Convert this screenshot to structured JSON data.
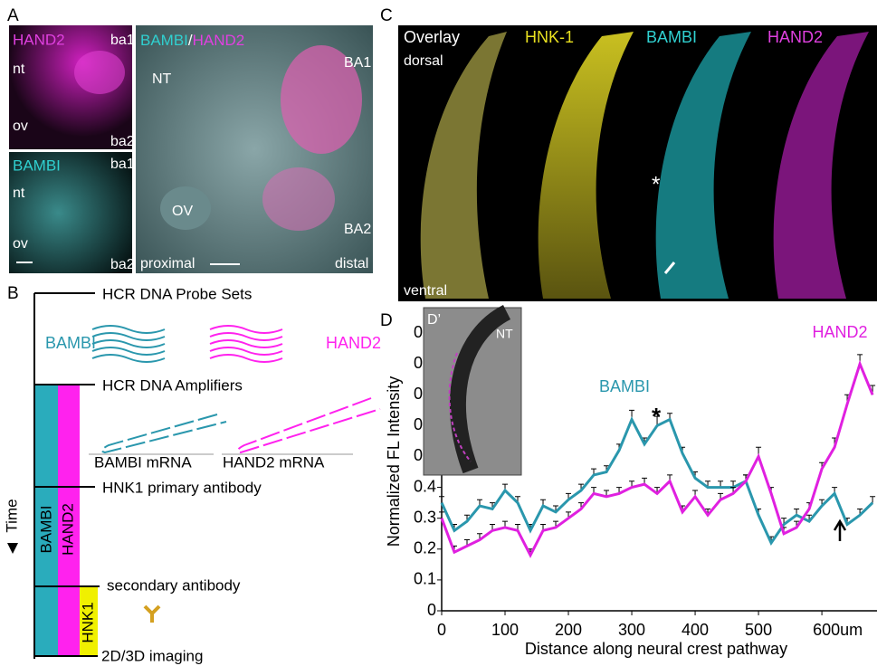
{
  "panel_a": {
    "letter": "A",
    "hand2_panel": {
      "title": "HAND2",
      "labels": [
        "nt",
        "ov",
        "ba1",
        "ba2"
      ]
    },
    "bambi_panel": {
      "title": "BAMBI",
      "labels": [
        "nt",
        "ov",
        "ba1",
        "ba2"
      ]
    },
    "merged_panel": {
      "title_parts": [
        "BAMBI",
        "/",
        "HAND2"
      ],
      "labels": [
        "NT",
        "BA1",
        "OV",
        "BA2",
        "proximal",
        "distal"
      ]
    }
  },
  "panel_b": {
    "letter": "B",
    "steps": [
      "HCR DNA Probe Sets",
      "HCR DNA Amplifiers",
      "HNK1 primary antibody",
      "secondary antibody",
      "2D/3D imaging"
    ],
    "probe_labels": [
      "BAMBI",
      "HAND2"
    ],
    "mrna_labels": [
      "BAMBI mRNA",
      "HAND2 mRNA"
    ],
    "axis": "Time",
    "bars": [
      "BAMBI",
      "HAND2",
      "HNK1"
    ]
  },
  "panel_c": {
    "letter": "C",
    "channels": [
      "Overlay",
      "HNK-1",
      "BAMBI",
      "HAND2"
    ],
    "orientation": [
      "dorsal",
      "ventral"
    ],
    "marker": "*"
  },
  "chart_data": {
    "type": "line",
    "letter": "D",
    "xlabel": "Distance along neural crest pathway",
    "ylabel": "Normalized FL Intensity",
    "inset": {
      "label": "D’",
      "text": "NT"
    },
    "annotations": [
      "*"
    ],
    "x": [
      0,
      20,
      40,
      60,
      80,
      100,
      120,
      140,
      160,
      180,
      200,
      220,
      240,
      260,
      280,
      300,
      320,
      340,
      360,
      380,
      400,
      420,
      440,
      460,
      480,
      500,
      520,
      540,
      560,
      580,
      600,
      620,
      640,
      660,
      680
    ],
    "series": [
      {
        "name": "BAMBI",
        "color": "#2a97ad",
        "values": [
          0.35,
          0.26,
          0.29,
          0.34,
          0.33,
          0.39,
          0.35,
          0.26,
          0.34,
          0.32,
          0.36,
          0.39,
          0.44,
          0.45,
          0.52,
          0.62,
          0.54,
          0.6,
          0.62,
          0.51,
          0.43,
          0.4,
          0.4,
          0.4,
          0.42,
          0.31,
          0.22,
          0.28,
          0.31,
          0.29,
          0.34,
          0.38,
          0.28,
          0.31,
          0.35
        ],
        "errors": [
          0.02,
          0.02,
          0.02,
          0.02,
          0.02,
          0.02,
          0.02,
          0.02,
          0.02,
          0.02,
          0.02,
          0.02,
          0.02,
          0.02,
          0.02,
          0.03,
          0.02,
          0.03,
          0.02,
          0.02,
          0.02,
          0.02,
          0.02,
          0.02,
          0.02,
          0.02,
          0.02,
          0.02,
          0.02,
          0.02,
          0.02,
          0.02,
          0.02,
          0.02,
          0.02
        ]
      },
      {
        "name": "HAND2",
        "color": "#e020e0",
        "values": [
          0.3,
          0.19,
          0.21,
          0.23,
          0.26,
          0.27,
          0.26,
          0.18,
          0.26,
          0.27,
          0.3,
          0.33,
          0.38,
          0.37,
          0.38,
          0.4,
          0.41,
          0.38,
          0.42,
          0.32,
          0.37,
          0.31,
          0.36,
          0.38,
          0.42,
          0.5,
          0.38,
          0.25,
          0.27,
          0.33,
          0.46,
          0.53,
          0.67,
          0.8,
          0.7
        ],
        "errors": [
          0.02,
          0.02,
          0.02,
          0.02,
          0.02,
          0.02,
          0.02,
          0.02,
          0.02,
          0.02,
          0.02,
          0.02,
          0.02,
          0.02,
          0.02,
          0.02,
          0.02,
          0.02,
          0.02,
          0.02,
          0.02,
          0.02,
          0.02,
          0.02,
          0.02,
          0.03,
          0.02,
          0.02,
          0.02,
          0.02,
          0.02,
          0.03,
          0.03,
          0.03,
          0.03
        ]
      }
    ],
    "xlim": [
      0,
      687
    ],
    "ylim": [
      0,
      0.95
    ],
    "xticks": [
      0,
      100,
      200,
      300,
      400,
      500,
      {
        "value": 600,
        "label": "600um"
      }
    ],
    "yticks": [
      0,
      0.1,
      0.2,
      0.3,
      0.4,
      0.5,
      0.6,
      0.7,
      0.8,
      0.9
    ]
  }
}
